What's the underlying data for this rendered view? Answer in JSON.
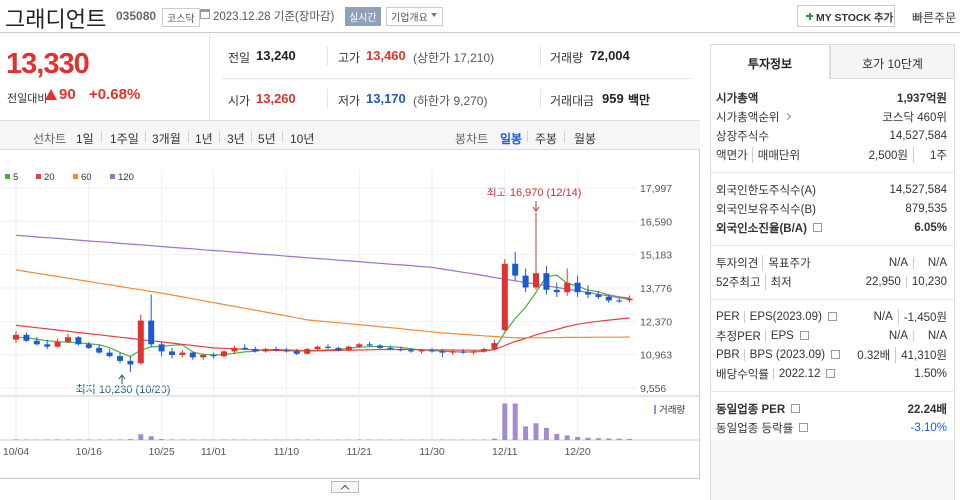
{
  "header": {
    "name": "그래디언트",
    "code": "035080",
    "market": "코스닥",
    "date": "2023.12.28 기준(장마감)",
    "realtime": "실시간",
    "company": "기업개요",
    "mystock": "MY STOCK 추가",
    "quick_order": "빠른주문"
  },
  "quote": {
    "price": "13,330",
    "change_label": "전일대비",
    "change": "90",
    "rate": "+0.68%",
    "fields": [
      {
        "label": "전일",
        "value": "13,240"
      },
      {
        "label": "고가",
        "value": "13,460",
        "note": "(상한가 17,210)"
      },
      {
        "label": "거래량",
        "value": "72,004"
      },
      {
        "label": "시가",
        "value": "13,260"
      },
      {
        "label": "저가",
        "value": "13,170",
        "note": "(하한가 9,270)"
      },
      {
        "label": "거래대금",
        "value": "959",
        "unit": "백만"
      }
    ]
  },
  "toolbar": {
    "line_chart": "선차트",
    "periods": [
      "1일",
      "1주일",
      "3개월",
      "1년",
      "3년",
      "5년",
      "10년"
    ],
    "candle_chart": "봉차트",
    "candle_periods": [
      "일봉",
      "주봉",
      "월봉"
    ]
  },
  "chart_data": {
    "type": "candlestick",
    "up_color": "#e0322e",
    "down_color": "#1a5bd1",
    "grid": true,
    "categories": [
      "10/04",
      null,
      null,
      null,
      null,
      null,
      null,
      "10/16",
      null,
      null,
      null,
      null,
      null,
      null,
      "10/25",
      null,
      null,
      null,
      null,
      "11/01",
      null,
      null,
      null,
      null,
      null,
      null,
      "11/10",
      null,
      null,
      null,
      null,
      null,
      null,
      "11/21",
      null,
      null,
      null,
      null,
      null,
      null,
      "11/30",
      null,
      null,
      null,
      null,
      null,
      null,
      "12/11",
      null,
      null,
      null,
      null,
      null,
      null,
      "12/20",
      null,
      null,
      null,
      null,
      null
    ],
    "open": [
      11600,
      11800,
      11550,
      11400,
      11300,
      11500,
      11700,
      11400,
      11250,
      11050,
      10900,
      10700,
      10600,
      12400,
      11400,
      11100,
      10950,
      11050,
      10850,
      10950,
      10900,
      11100,
      11250,
      11200,
      11100,
      11200,
      11150,
      11100,
      11000,
      11200,
      11300,
      11250,
      11150,
      11300,
      11400,
      11350,
      11250,
      11200,
      11150,
      11100,
      11150,
      11100,
      11050,
      11100,
      11050,
      11100,
      11200,
      12000,
      14800,
      14300,
      13800,
      14400,
      13700,
      13600,
      14000,
      13600,
      13500,
      13400,
      13250,
      13260
    ],
    "high": [
      11950,
      11900,
      11700,
      11600,
      11650,
      11850,
      11750,
      11500,
      11400,
      11200,
      11050,
      10900,
      12650,
      13500,
      11500,
      11250,
      11150,
      11100,
      11000,
      11050,
      11150,
      11350,
      11400,
      11300,
      11250,
      11300,
      11250,
      11200,
      11250,
      11350,
      11400,
      11300,
      11350,
      11450,
      11500,
      11400,
      11350,
      11300,
      11250,
      11200,
      11250,
      11200,
      11150,
      11200,
      11150,
      11250,
      11600,
      15000,
      15300,
      14600,
      16970,
      14700,
      14000,
      14600,
      14300,
      13900,
      13650,
      13500,
      13400,
      13460
    ],
    "low": [
      11450,
      11500,
      11350,
      11200,
      11250,
      11450,
      11350,
      11200,
      11000,
      10850,
      10600,
      10230,
      10550,
      11300,
      10900,
      10800,
      10850,
      10750,
      10750,
      10800,
      10850,
      11000,
      11150,
      11050,
      11050,
      11100,
      11050,
      10950,
      10980,
      11150,
      11200,
      11100,
      11100,
      11250,
      11300,
      11200,
      11150,
      11100,
      11050,
      11000,
      11050,
      10850,
      10950,
      11000,
      10950,
      11050,
      11150,
      11950,
      14100,
      13600,
      13700,
      13500,
      13400,
      13450,
      13400,
      13350,
      13300,
      13150,
      13150,
      13170
    ],
    "close": [
      11800,
      11550,
      11400,
      11300,
      11500,
      11700,
      11400,
      11250,
      11050,
      10900,
      10700,
      10550,
      12400,
      11400,
      11100,
      10950,
      11050,
      10850,
      10950,
      10900,
      11100,
      11250,
      11200,
      11100,
      11200,
      11150,
      11100,
      11000,
      11200,
      11300,
      11250,
      11150,
      11300,
      11400,
      11350,
      11250,
      11200,
      11150,
      11100,
      11150,
      11100,
      11050,
      11100,
      11050,
      11100,
      11200,
      11450,
      14800,
      14300,
      13800,
      14400,
      13700,
      13600,
      14000,
      13600,
      13500,
      13400,
      13250,
      13240,
      13330
    ],
    "series": [
      {
        "name": "5",
        "color": "#4caf3f",
        "values": [
          11700,
          11680,
          11620,
          11550,
          11510,
          11490,
          11460,
          11430,
          11380,
          11260,
          11060,
          10890,
          11160,
          11290,
          11310,
          11360,
          11380,
          11070,
          10980,
          10950,
          10970,
          11020,
          11080,
          11110,
          11170,
          11180,
          11170,
          11150,
          11130,
          11150,
          11170,
          11180,
          11240,
          11280,
          11300,
          11310,
          11300,
          11270,
          11210,
          11170,
          11140,
          11110,
          11090,
          11070,
          11080,
          11100,
          11180,
          11900,
          12490,
          12970,
          13590,
          14260,
          14320,
          13970,
          13860,
          13680,
          13620,
          13480,
          13400,
          13350
        ]
      },
      {
        "name": "20",
        "color": "#e5403e",
        "values": [
          12200,
          12150,
          12100,
          12050,
          12000,
          11950,
          11900,
          11850,
          11800,
          11750,
          11700,
          11650,
          11600,
          11550,
          11500,
          11450,
          11400,
          11350,
          11300,
          11250,
          11230,
          11210,
          11190,
          11170,
          11150,
          11140,
          11130,
          11120,
          11120,
          11120,
          11130,
          11140,
          11150,
          11160,
          11170,
          11180,
          11180,
          11180,
          11180,
          11170,
          11170,
          11160,
          11160,
          11150,
          11150,
          11150,
          11170,
          11350,
          11520,
          11650,
          11800,
          11920,
          12030,
          12150,
          12250,
          12310,
          12370,
          12420,
          12470,
          12510
        ]
      },
      {
        "name": "60",
        "color": "#f08c34",
        "values": [
          14540,
          14470,
          14400,
          14330,
          14260,
          14190,
          14120,
          14050,
          13980,
          13910,
          13840,
          13770,
          13700,
          13630,
          13560,
          13480,
          13400,
          13320,
          13240,
          13160,
          13080,
          13000,
          12920,
          12840,
          12760,
          12680,
          12600,
          12520,
          12430,
          12390,
          12350,
          12310,
          12270,
          12230,
          12190,
          12140,
          12100,
          12060,
          12010,
          11970,
          11930,
          11880,
          11850,
          11820,
          11790,
          11760,
          11730,
          11700,
          11670,
          11670,
          11680,
          11680,
          11680,
          11690,
          11690,
          11690,
          11700,
          11700,
          11700,
          11710
        ]
      },
      {
        "name": "120",
        "color": "#a070c8",
        "values": [
          16000,
          15970,
          15930,
          15900,
          15870,
          15830,
          15800,
          15760,
          15730,
          15700,
          15660,
          15630,
          15600,
          15560,
          15530,
          15490,
          15460,
          15430,
          15390,
          15360,
          15330,
          15290,
          15260,
          15220,
          15190,
          15160,
          15120,
          15090,
          15050,
          15020,
          14990,
          14950,
          14920,
          14890,
          14850,
          14820,
          14780,
          14750,
          14720,
          14680,
          14650,
          14580,
          14510,
          14440,
          14370,
          14300,
          14220,
          14150,
          14080,
          14010,
          13940,
          13870,
          13800,
          13730,
          13660,
          13590,
          13510,
          13440,
          13370,
          13300
        ]
      }
    ],
    "ylim": [
      9556,
      17997
    ],
    "yticks": [
      {
        "value": 17997,
        "label": "17,997"
      },
      {
        "value": 16590,
        "label": "16,590"
      },
      {
        "value": 15183,
        "label": "15,183"
      },
      {
        "value": 13776,
        "label": "13,776"
      },
      {
        "value": 12370,
        "label": "12,370"
      },
      {
        "value": 10963,
        "label": "10,963"
      },
      {
        "value": 9556,
        "label": "9,556"
      }
    ],
    "annotations": {
      "high": "최고 16,970 (12/14)",
      "low": "최저 10,230 (10/20)"
    },
    "volume": {
      "name": "거래량",
      "color": "#a48bd1",
      "ylim": [
        0,
        2500000
      ],
      "values": [
        40000,
        30000,
        25000,
        30000,
        35000,
        30000,
        25000,
        28000,
        30000,
        32000,
        35000,
        60000,
        380000,
        250000,
        60000,
        40000,
        30000,
        30000,
        25000,
        20000,
        22000,
        30000,
        25000,
        20000,
        18000,
        22000,
        20000,
        25000,
        30000,
        22000,
        20000,
        18000,
        25000,
        30000,
        22000,
        18000,
        20000,
        18000,
        16000,
        20000,
        18000,
        30000,
        20000,
        18000,
        20000,
        25000,
        90000,
        2400000,
        2400000,
        900000,
        1100000,
        800000,
        400000,
        300000,
        200000,
        150000,
        120000,
        100000,
        90000,
        72004
      ]
    }
  },
  "side": {
    "tabs": [
      "투자정보",
      "호가 10단계"
    ],
    "groups": [
      [
        {
          "labels": [
            "시가총액"
          ],
          "values": [
            "1,937억원"
          ],
          "bold": true
        },
        {
          "labels": [
            "시가총액순위"
          ],
          "values": [
            "코스닥 460위"
          ],
          "link": true
        },
        {
          "labels": [
            "상장주식수"
          ],
          "values": [
            "14,527,584"
          ]
        },
        {
          "labels": [
            "액면가",
            "매매단위"
          ],
          "values": [
            "2,500원",
            "1주"
          ]
        }
      ],
      [
        {
          "labels": [
            "외국인한도주식수(A)"
          ],
          "values": [
            "14,527,584"
          ]
        },
        {
          "labels": [
            "외국인보유주식수(B)"
          ],
          "values": [
            "879,535"
          ]
        },
        {
          "labels": [
            "외국인소진율(B/A)"
          ],
          "values": [
            "6.05%"
          ],
          "bold": true,
          "help": true
        }
      ],
      [
        {
          "labels": [
            "투자의견",
            "목표주가"
          ],
          "values": [
            "N/A",
            "N/A"
          ]
        },
        {
          "labels": [
            "52주최고",
            "최저"
          ],
          "values": [
            "22,950",
            "10,230"
          ]
        }
      ],
      [
        {
          "labels": [
            "PER",
            "EPS(2023.09)"
          ],
          "values": [
            "N/A",
            "-1,450원"
          ],
          "help": true
        },
        {
          "labels": [
            "추정PER",
            "EPS"
          ],
          "values": [
            "N/A",
            "N/A"
          ],
          "help": true
        },
        {
          "labels": [
            "PBR",
            "BPS (2023.09)"
          ],
          "values": [
            "0.32배",
            "41,310원"
          ],
          "help": true
        },
        {
          "labels": [
            "배당수익률",
            "2022.12"
          ],
          "values": [
            "1.50%"
          ],
          "help": true
        }
      ],
      [
        {
          "labels": [
            "동일업종 PER"
          ],
          "values": [
            "22.24배"
          ],
          "bold": true,
          "help": true
        },
        {
          "labels": [
            "동일업종 등락률"
          ],
          "values": [
            "-3.10%"
          ],
          "help": true,
          "color": "#1a5bd1"
        }
      ]
    ]
  }
}
